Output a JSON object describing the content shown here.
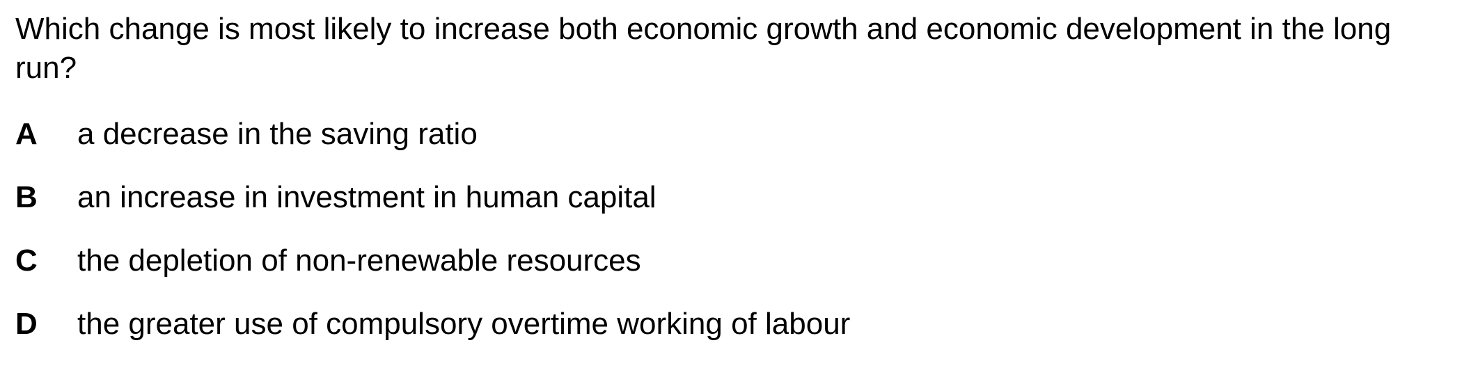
{
  "question": {
    "text": "Which change is most likely to increase both economic growth and economic development in the long run?"
  },
  "options": [
    {
      "letter": "A",
      "text": "a decrease in the saving ratio"
    },
    {
      "letter": "B",
      "text": "an increase in investment in human capital"
    },
    {
      "letter": "C",
      "text": "the depletion of non-renewable resources"
    },
    {
      "letter": "D",
      "text": "the greater use of compulsory overtime working of labour"
    }
  ]
}
